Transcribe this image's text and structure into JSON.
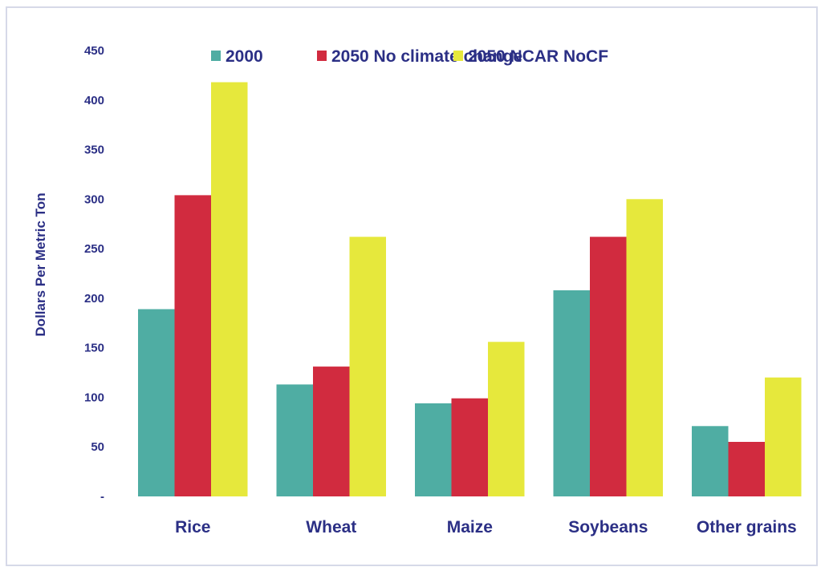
{
  "chart_data": {
    "type": "bar",
    "title": "",
    "xlabel": "",
    "ylabel": "Dollars Per Metric Ton",
    "categories": [
      "Rice",
      "Wheat",
      "Maize",
      "Soybeans",
      "Other grains"
    ],
    "series": [
      {
        "name": "2000",
        "color": "#4fada3",
        "values": [
          189,
          113,
          94,
          208,
          71
        ]
      },
      {
        "name": "2050 No climate change",
        "color": "#d12b3f",
        "values": [
          304,
          131,
          99,
          262,
          55
        ]
      },
      {
        "name": "2050 NCAR NoCF",
        "color": "#e6e83c",
        "values": [
          418,
          262,
          156,
          300,
          120
        ]
      }
    ],
    "ylim": [
      0,
      450
    ],
    "yticks": [
      0,
      50,
      100,
      150,
      200,
      250,
      300,
      350,
      400,
      450
    ],
    "ytick_labels": [
      "-",
      "50",
      "100",
      "150",
      "200",
      "250",
      "300",
      "350",
      "400",
      "450"
    ],
    "grid": false,
    "legend_position": "top"
  }
}
